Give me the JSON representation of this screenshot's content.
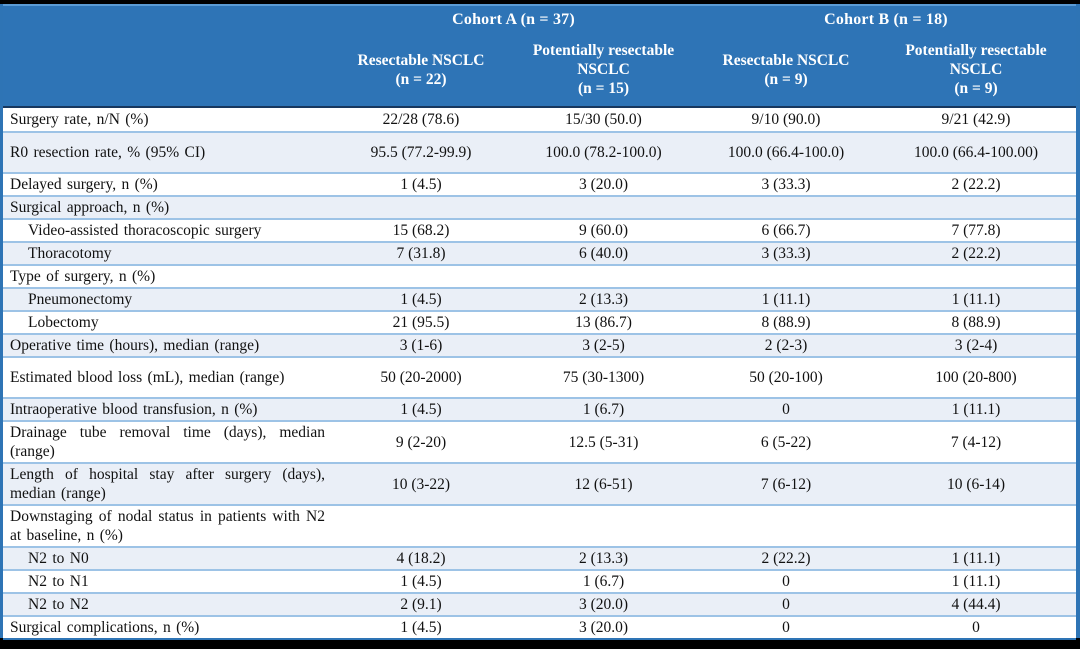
{
  "colors": {
    "header-bg": "#2e74b6",
    "header-edge": "#5b9bd5",
    "header-underline": "#17375e",
    "side-border": "#2e74b5",
    "separator": "#9dc3e6",
    "shade": "#eaeff7"
  },
  "table": {
    "col_groups": [
      {
        "label": "Cohort A (n = 37)"
      },
      {
        "label": "Cohort B (n = 18)"
      }
    ],
    "columns": [
      {
        "name": "Resectable NSCLC",
        "n": "(n = 22)"
      },
      {
        "name": "Potentially resectable NSCLC",
        "n": "(n = 15)"
      },
      {
        "name": "Resectable NSCLC",
        "n": "(n = 9)"
      },
      {
        "name": "Potentially resectable NSCLC",
        "n": "(n = 9)"
      }
    ],
    "rows": [
      {
        "label": "Surgery rate, n/N (%)",
        "indent": false,
        "tall": false,
        "values": [
          "22/28 (78.6)",
          "15/30 (50.0)",
          "9/10 (90.0)",
          "9/21 (42.9)"
        ]
      },
      {
        "label": "R0 resection rate, % (95% CI)",
        "indent": false,
        "tall": true,
        "values": [
          "95.5 (77.2-99.9)",
          "100.0 (78.2-100.0)",
          "100.0 (66.4-100.0)",
          "100.0 (66.4-100.00)"
        ]
      },
      {
        "label": "Delayed surgery, n (%)",
        "indent": false,
        "tall": false,
        "values": [
          "1 (4.5)",
          "3 (20.0)",
          "3 (33.3)",
          "2 (22.2)"
        ]
      },
      {
        "label": "Surgical approach, n (%)",
        "indent": false,
        "tall": false,
        "values": [
          "",
          "",
          "",
          ""
        ]
      },
      {
        "label": "Video-assisted thoracoscopic surgery",
        "indent": true,
        "tall": false,
        "values": [
          "15 (68.2)",
          "9 (60.0)",
          "6 (66.7)",
          "7 (77.8)"
        ]
      },
      {
        "label": "Thoracotomy",
        "indent": true,
        "tall": false,
        "values": [
          "7 (31.8)",
          "6 (40.0)",
          "3 (33.3)",
          "2 (22.2)"
        ]
      },
      {
        "label": "Type of surgery, n (%)",
        "indent": false,
        "tall": false,
        "values": [
          "",
          "",
          "",
          ""
        ]
      },
      {
        "label": "Pneumonectomy",
        "indent": true,
        "tall": false,
        "values": [
          "1 (4.5)",
          "2 (13.3)",
          "1 (11.1)",
          "1 (11.1)"
        ]
      },
      {
        "label": "Lobectomy",
        "indent": true,
        "tall": false,
        "values": [
          "21 (95.5)",
          "13 (86.7)",
          "8 (88.9)",
          "8 (88.9)"
        ]
      },
      {
        "label": "Operative time (hours), median (range)",
        "indent": false,
        "tall": false,
        "values": [
          "3 (1-6)",
          "3 (2-5)",
          "2 (2-3)",
          "3 (2-4)"
        ]
      },
      {
        "label": "Estimated blood loss (mL), median (range)",
        "indent": false,
        "tall": true,
        "values": [
          "50 (20-2000)",
          "75 (30-1300)",
          "50 (20-100)",
          "100 (20-800)"
        ]
      },
      {
        "label": "Intraoperative blood transfusion, n (%)",
        "indent": false,
        "tall": false,
        "values": [
          "1 (4.5)",
          "1 (6.7)",
          "0",
          "1 (11.1)"
        ]
      },
      {
        "label": "Drainage tube removal time (days), median (range)",
        "indent": false,
        "tall": true,
        "values": [
          "9 (2-20)",
          "12.5 (5-31)",
          "6 (5-22)",
          "7 (4-12)"
        ]
      },
      {
        "label": "Length of hospital stay after surgery (days), median (range)",
        "indent": false,
        "tall": true,
        "values": [
          "10 (3-22)",
          "12 (6-51)",
          "7 (6-12)",
          "10 (6-14)"
        ]
      },
      {
        "label": "Downstaging of nodal status in patients with N2 at baseline, n (%)",
        "indent": false,
        "tall": true,
        "values": [
          "",
          "",
          "",
          ""
        ]
      },
      {
        "label": "N2 to N0",
        "indent": true,
        "tall": false,
        "values": [
          "4 (18.2)",
          "2 (13.3)",
          "2 (22.2)",
          "1 (11.1)"
        ]
      },
      {
        "label": "N2 to N1",
        "indent": true,
        "tall": false,
        "values": [
          "1 (4.5)",
          "1 (6.7)",
          "0",
          "1 (11.1)"
        ]
      },
      {
        "label": "N2 to N2",
        "indent": true,
        "tall": false,
        "values": [
          "2 (9.1)",
          "3 (20.0)",
          "0",
          "4 (44.4)"
        ]
      },
      {
        "label": "Surgical complications, n (%)",
        "indent": false,
        "tall": false,
        "values": [
          "1 (4.5)",
          "3 (20.0)",
          "0",
          "0"
        ]
      }
    ]
  }
}
